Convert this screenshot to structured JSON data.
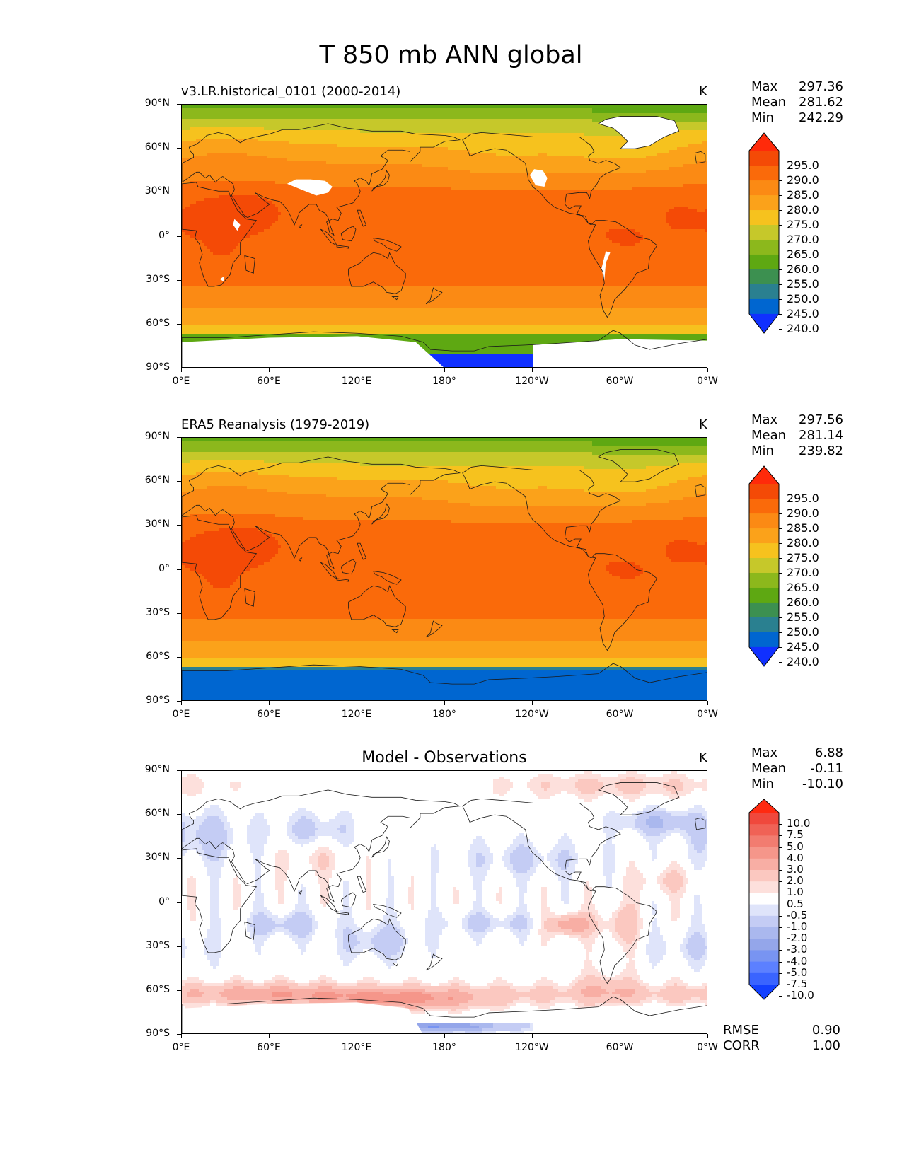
{
  "title": "T 850 mb ANN global",
  "chart_data": [
    {
      "type": "heatmap",
      "title": "v3.LR.historical_0101 (2000-2014)",
      "units": "K",
      "stats": {
        "max_label": "Max",
        "max": "297.36",
        "mean_label": "Mean",
        "mean": "281.62",
        "min_label": "Min",
        "min": "242.29"
      },
      "yticks": [
        "90°N",
        "60°N",
        "30°N",
        "0°",
        "30°S",
        "60°S",
        "90°S"
      ],
      "xticks": [
        "0°E",
        "60°E",
        "120°E",
        "180°",
        "120°W",
        "60°W",
        "0°W"
      ],
      "colorbar_levels": [
        "295.0",
        "290.0",
        "285.0",
        "280.0",
        "275.0",
        "270.0",
        "265.0",
        "260.0",
        "255.0",
        "250.0",
        "245.0",
        "240.0"
      ],
      "field": "model"
    },
    {
      "type": "heatmap",
      "title": "ERA5 Reanalysis (1979-2019)",
      "units": "K",
      "stats": {
        "max_label": "Max",
        "max": "297.56",
        "mean_label": "Mean",
        "mean": "281.14",
        "min_label": "Min",
        "min": "239.82"
      },
      "yticks": [
        "90°N",
        "60°N",
        "30°N",
        "0°",
        "30°S",
        "60°S",
        "90°S"
      ],
      "xticks": [
        "0°E",
        "60°E",
        "120°E",
        "180°",
        "120°W",
        "60°W",
        "0°W"
      ],
      "colorbar_levels": [
        "295.0",
        "290.0",
        "285.0",
        "280.0",
        "275.0",
        "270.0",
        "265.0",
        "260.0",
        "255.0",
        "250.0",
        "245.0",
        "240.0"
      ],
      "field": "obs"
    },
    {
      "type": "heatmap",
      "title": "Model - Observations",
      "units": "K",
      "stats": {
        "max_label": "Max",
        "max": "6.88",
        "mean_label": "Mean",
        "mean": "-0.11",
        "min_label": "Min",
        "min": "-10.10"
      },
      "yticks": [
        "90°N",
        "60°N",
        "30°N",
        "0°",
        "30°S",
        "60°S",
        "90°S"
      ],
      "xticks": [
        "0°E",
        "60°E",
        "120°E",
        "180°",
        "120°W",
        "60°W",
        "0°W"
      ],
      "colorbar_levels": [
        "10.0",
        "7.5",
        "5.0",
        "4.0",
        "3.0",
        "2.0",
        "1.0",
        "0.5",
        "-0.5",
        "-1.0",
        "-2.0",
        "-3.0",
        "-4.0",
        "-5.0",
        "-7.5",
        "-10.0"
      ],
      "rmse_label": "RMSE",
      "rmse": "0.90",
      "corr_label": "CORR",
      "corr": "1.00",
      "field": "diff"
    }
  ],
  "colors": {
    "abs_scale": [
      "#1030ff",
      "#0066d0",
      "#2a8090",
      "#3c9050",
      "#5ea812",
      "#8cb81c",
      "#c6c82a",
      "#f6c21e",
      "#fba21a",
      "#fb8a14",
      "#fa6a0a",
      "#f44a06",
      "#ff2a0a"
    ],
    "diff_scale": [
      "#1340ff",
      "#3a64ff",
      "#5c80ff",
      "#7894f2",
      "#94a6ea",
      "#aab8ee",
      "#c4ccf4",
      "#dfe4fa",
      "#ffffff",
      "#fde0dc",
      "#fbc8c0",
      "#f8aea4",
      "#f5968a",
      "#f27c70",
      "#f06256",
      "#f0483c",
      "#ff2a10"
    ],
    "land_outline": "#1a1a1a"
  }
}
